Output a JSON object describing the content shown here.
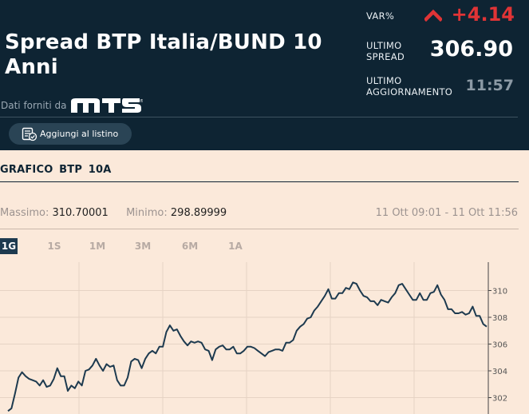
{
  "header": {
    "title": "Spread BTP Italia/BUND 10 Anni",
    "provider_label": "Dati forniti da",
    "provider_logo": "MTS",
    "var_label": "VAR%",
    "var_value": "+4.14",
    "var_direction_icon": "chevron-up-icon",
    "spread_label": "ULTIMO SPREAD",
    "spread_value": "306.90",
    "update_label": "ULTIMO AGGIORNAMENTO",
    "update_value": "11:57",
    "add_button_label": "Aggiungi al listino",
    "colors": {
      "background": "#0e2433",
      "negative": "#e03436"
    }
  },
  "chart_section": {
    "title": "GRAFICO  BTP 10A",
    "max_label": "Massimo:",
    "max_value": "310.70001",
    "min_label": "Minimo:",
    "min_value": "298.89999",
    "date_range": "11 Ott 09:01 - 11 Ott 11:56",
    "periods": [
      {
        "label": "1G",
        "active": true
      },
      {
        "label": "1S",
        "active": false
      },
      {
        "label": "1M",
        "active": false
      },
      {
        "label": "3M",
        "active": false
      },
      {
        "label": "6M",
        "active": false
      },
      {
        "label": "1A",
        "active": false
      }
    ]
  },
  "chart_data": {
    "type": "line",
    "title": "",
    "xlabel": "",
    "ylabel": "",
    "y_ticks": [
      302,
      304,
      306,
      308,
      310
    ],
    "ylim": [
      301.0,
      310.9
    ],
    "grid": true,
    "line_color": "#1d3a4f",
    "series": [
      {
        "values": [
          301.0,
          301.2,
          302.3,
          303.5,
          303.9,
          303.6,
          303.4,
          303.3,
          303.2,
          302.9,
          303.3,
          302.8,
          302.9,
          303.4,
          304.2,
          303.6,
          303.6,
          302.5,
          302.9,
          302.7,
          303.2,
          302.9,
          304.0,
          304.1,
          304.4,
          304.9,
          304.4,
          304.0,
          304.5,
          304.3,
          304.4,
          303.3,
          302.9,
          302.9,
          303.5,
          304.7,
          304.9,
          304.8,
          304.2,
          304.9,
          305.3,
          305.5,
          305.3,
          305.8,
          305.8,
          306.9,
          307.4,
          307.0,
          307.1,
          306.6,
          306.2,
          305.9,
          306.2,
          306.1,
          306.2,
          306.1,
          305.6,
          305.5,
          304.8,
          305.6,
          305.8,
          305.9,
          305.6,
          305.6,
          305.8,
          305.3,
          305.3,
          305.5,
          305.8,
          305.8,
          305.7,
          305.5,
          305.3,
          305.1,
          305.4,
          305.5,
          305.6,
          305.6,
          305.5,
          306.1,
          306.1,
          306.3,
          307.0,
          307.3,
          307.5,
          307.9,
          308.0,
          308.5,
          308.8,
          309.2,
          309.6,
          310.1,
          309.4,
          309.4,
          309.8,
          309.8,
          310.2,
          310.1,
          310.6,
          310.5,
          310.0,
          309.6,
          309.5,
          309.2,
          309.2,
          308.9,
          309.3,
          309.2,
          309.1,
          309.5,
          309.8,
          310.4,
          310.5,
          310.1,
          309.7,
          309.3,
          309.3,
          309.8,
          309.3,
          309.3,
          309.8,
          309.9,
          310.4,
          309.7,
          309.3,
          308.6,
          308.6,
          308.3,
          308.3,
          308.4,
          308.2,
          308.3,
          308.8,
          308.1,
          308.1,
          307.5,
          307.3
        ]
      }
    ]
  }
}
